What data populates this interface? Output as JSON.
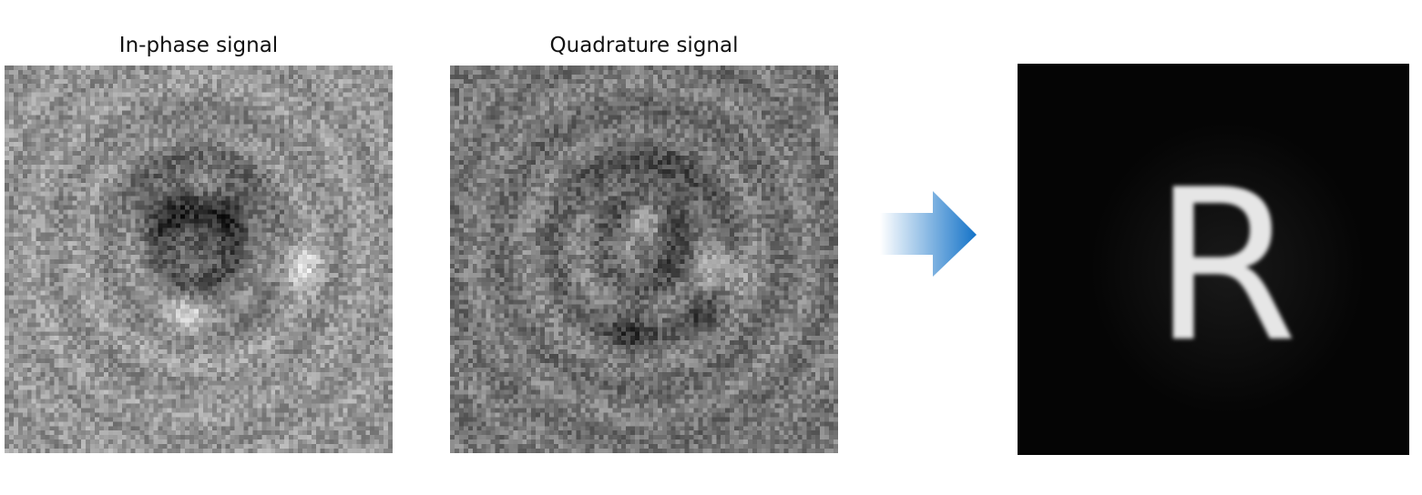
{
  "panels": [
    {
      "id": "inphase",
      "title": "In-phase signal"
    },
    {
      "id": "quadrature",
      "title": "Quadrature signal"
    },
    {
      "id": "reconstruction",
      "title": "",
      "letter": "R"
    }
  ],
  "colors": {
    "arrow_start": "#ffffff",
    "arrow_end": "#1473c8",
    "result_background": "#050505",
    "letter": "#e6e6e6"
  }
}
